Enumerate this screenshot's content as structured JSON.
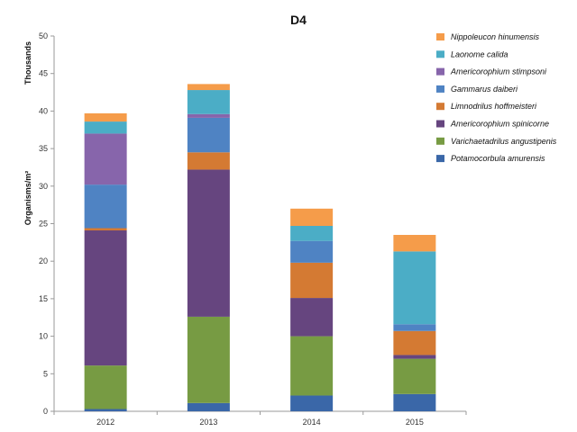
{
  "chart_data": {
    "type": "bar",
    "stacked": true,
    "title": "D4",
    "ylabel": "Organisms/m²",
    "yunit": "Thousands",
    "xlabel": "",
    "categories": [
      "2012",
      "2013",
      "2014",
      "2015"
    ],
    "ylim": [
      0,
      50
    ],
    "yticks": [
      0,
      5,
      10,
      15,
      20,
      25,
      30,
      35,
      40,
      45,
      50
    ],
    "grid": false,
    "legend_position": "right",
    "series": [
      {
        "name": "Potamocorbula amurensis",
        "color": "#3a67a8",
        "values": [
          0.3,
          1.1,
          2.1,
          2.3
        ]
      },
      {
        "name": "Varichaetadrilus angustipenis",
        "color": "#779b43",
        "values": [
          5.8,
          11.5,
          7.9,
          4.7
        ]
      },
      {
        "name": "Americorophium spinicorne",
        "color": "#66457f",
        "values": [
          18.0,
          19.6,
          5.1,
          0.5
        ]
      },
      {
        "name": "Limnodrilus hoffmeisteri",
        "color": "#d47a33",
        "values": [
          0.3,
          2.3,
          4.7,
          3.2
        ]
      },
      {
        "name": "Gammarus daiberi",
        "color": "#4f83c3",
        "values": [
          5.8,
          4.6,
          2.9,
          0.9
        ]
      },
      {
        "name": "Americorophium stimpsoni",
        "color": "#8765ab",
        "values": [
          6.8,
          0.5,
          0,
          0
        ]
      },
      {
        "name": "Laonome calida",
        "color": "#4badc6",
        "values": [
          1.6,
          3.2,
          2.0,
          9.7
        ]
      },
      {
        "name": "Nippoleucon hinumensis",
        "color": "#f59c4a",
        "values": [
          1.1,
          0.8,
          2.3,
          2.2
        ]
      }
    ]
  }
}
